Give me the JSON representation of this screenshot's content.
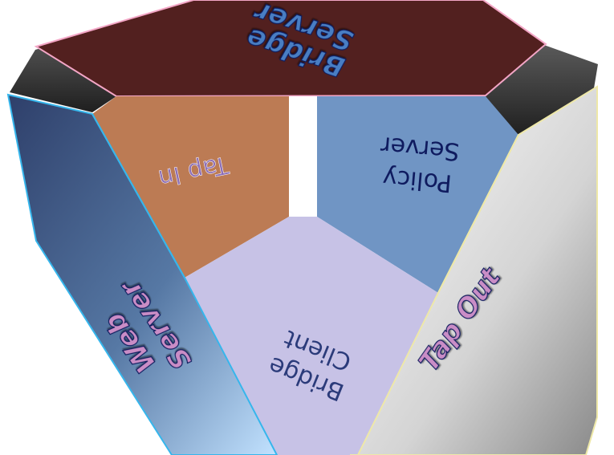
{
  "diagram": {
    "faces": {
      "top": {
        "line1": "Bridge",
        "line2": "Server"
      },
      "left": {
        "line1": "Web",
        "line2": "Server"
      },
      "right": {
        "line1": "Tap Out",
        "line2": ""
      },
      "back_left": {
        "line1": "Tap In",
        "line2": ""
      },
      "back_right": {
        "line1": "Policy",
        "line2": "Server"
      },
      "bottom": {
        "line1": "Bridge",
        "line2": "Client"
      }
    },
    "colors": {
      "top": "#52201f",
      "top_edge": "#f3a6c6",
      "left_dark": "#2f4670",
      "left_light": "#b7d6f4",
      "left_edge": "#36b6ec",
      "right_light": "#ffffff",
      "right_dark": "#8a8a8a",
      "right_edge": "#eee8a8",
      "back_left": "#bc7b54",
      "back_right": "#7095c4",
      "bottom": "#c7c2e6",
      "bevel": "#2f2f2f",
      "label_outer": "#4a7ec3",
      "label_inner": "#0f1b5f",
      "label_pink": "#c98dc6"
    }
  }
}
